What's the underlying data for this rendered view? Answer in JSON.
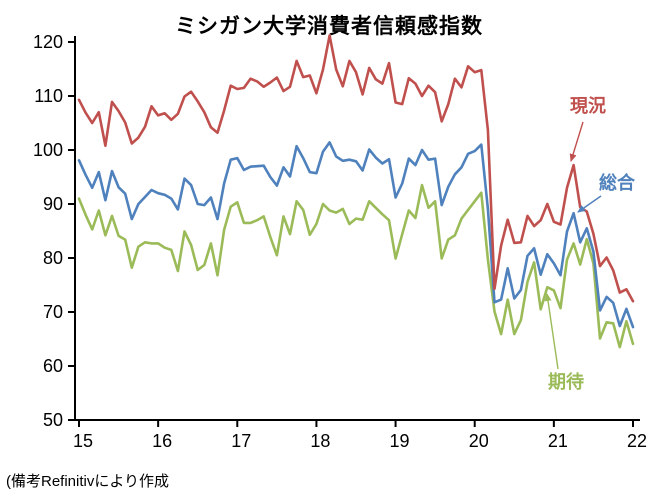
{
  "chart_data": {
    "type": "line",
    "title": "ミシガン大学消費者信頼感指数",
    "frequency": "monthly",
    "xlabel": "",
    "ylabel": "",
    "ylim": [
      50,
      120
    ],
    "yticks": [
      50,
      60,
      70,
      80,
      90,
      100,
      110,
      120
    ],
    "xticks": [
      15,
      16,
      17,
      18,
      19,
      20,
      21,
      22
    ],
    "grid": false,
    "legend_position": "inline-annotations",
    "x_range_note": "Jan 2015 - Jan 2022, one point per month",
    "series": [
      {
        "id": "current",
        "name": "現況",
        "color": "#c0504d",
        "values": [
          109.3,
          106.9,
          105.0,
          107.0,
          100.8,
          108.9,
          107.2,
          105.1,
          101.2,
          102.3,
          104.3,
          108.1,
          106.4,
          106.8,
          105.6,
          106.7,
          109.9,
          110.8,
          109.0,
          107.0,
          104.2,
          103.2,
          107.3,
          111.9,
          111.3,
          111.5,
          113.2,
          112.7,
          111.7,
          112.5,
          113.4,
          110.9,
          111.7,
          116.5,
          113.5,
          113.8,
          110.5,
          114.9,
          121.2,
          114.9,
          111.8,
          116.5,
          114.4,
          110.3,
          115.2,
          113.1,
          112.3,
          116.1,
          108.8,
          108.5,
          113.3,
          112.3,
          110.0,
          111.9,
          110.7,
          105.3,
          108.5,
          113.2,
          111.6,
          115.5,
          114.4,
          114.8,
          103.7,
          74.3,
          82.3,
          87.1,
          82.8,
          82.9,
          87.8,
          85.9,
          87.0,
          90.0,
          86.7,
          86.2,
          93.0,
          97.2,
          89.4,
          88.6,
          84.5,
          78.5,
          80.1,
          77.7,
          73.6,
          74.2,
          72.0
        ]
      },
      {
        "id": "composite",
        "name": "総合",
        "color": "#4f81bd",
        "values": [
          98.1,
          95.4,
          93.0,
          95.9,
          90.7,
          96.1,
          93.1,
          91.9,
          87.2,
          90.0,
          91.3,
          92.6,
          92.0,
          91.7,
          91.0,
          89.0,
          94.7,
          93.5,
          90.0,
          89.8,
          91.2,
          87.2,
          93.8,
          98.2,
          98.5,
          96.3,
          96.9,
          97.0,
          97.1,
          95.0,
          93.4,
          96.8,
          95.1,
          100.7,
          98.5,
          95.9,
          95.7,
          99.7,
          101.4,
          98.8,
          98.0,
          98.2,
          97.9,
          96.2,
          100.1,
          98.6,
          97.5,
          98.3,
          91.2,
          93.8,
          98.4,
          97.2,
          100.0,
          98.2,
          98.4,
          89.8,
          93.2,
          95.5,
          96.8,
          99.3,
          99.8,
          101.0,
          89.1,
          71.8,
          72.3,
          78.1,
          72.5,
          74.1,
          80.4,
          81.8,
          76.9,
          80.7,
          79.0,
          76.8,
          84.9,
          88.3,
          82.9,
          85.5,
          81.2,
          70.3,
          72.8,
          71.7,
          67.4,
          70.6,
          67.2
        ]
      },
      {
        "id": "expectations",
        "name": "期待",
        "color": "#9bbb59",
        "values": [
          91.0,
          88.0,
          85.3,
          88.8,
          84.2,
          87.8,
          84.1,
          83.4,
          78.2,
          82.1,
          82.9,
          82.7,
          82.7,
          81.9,
          81.5,
          77.6,
          84.9,
          82.4,
          77.8,
          78.7,
          82.7,
          76.8,
          85.2,
          89.5,
          90.3,
          86.5,
          86.5,
          87.0,
          87.7,
          83.9,
          80.5,
          87.7,
          84.4,
          90.5,
          88.9,
          84.3,
          86.3,
          90.0,
          88.8,
          88.4,
          89.1,
          86.3,
          87.3,
          87.1,
          90.5,
          89.3,
          88.1,
          87.0,
          79.9,
          84.4,
          88.8,
          87.4,
          93.5,
          89.3,
          90.5,
          79.9,
          83.4,
          84.2,
          87.3,
          88.9,
          90.5,
          92.1,
          79.7,
          70.1,
          65.9,
          72.3,
          65.9,
          68.5,
          75.6,
          79.2,
          70.5,
          74.6,
          74.0,
          70.7,
          79.7,
          82.7,
          78.8,
          83.5,
          79.0,
          65.1,
          68.1,
          67.9,
          63.5,
          68.3,
          64.1
        ]
      }
    ],
    "annotations": [
      {
        "label": "現況",
        "series": "current",
        "color": "#c0504d"
      },
      {
        "label": "総合",
        "series": "composite",
        "color": "#4f81bd"
      },
      {
        "label": "期待",
        "series": "expectations",
        "color": "#9bbb59"
      }
    ]
  },
  "footer": {
    "note": "(備考Refinitivにより作成"
  }
}
